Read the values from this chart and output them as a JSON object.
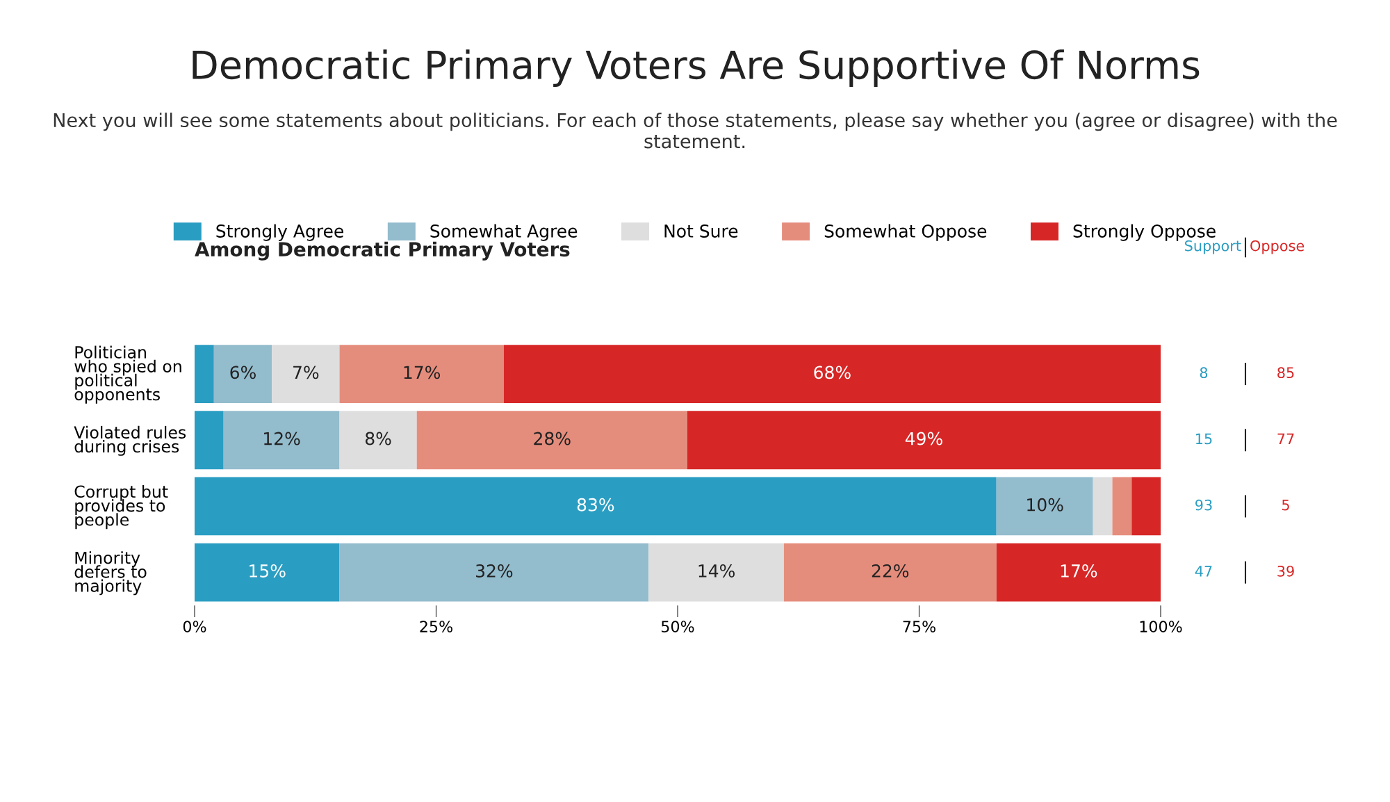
{
  "chart_data": {
    "type": "bar",
    "orientation": "horizontal",
    "stacked": true,
    "title": "Democratic Primary Voters Are Supportive Of Norms",
    "subtitle": "Next you will see some statements about politicians. For each of those statements, please say whether you (agree or disagree) with the statement.",
    "categories": [
      "Politician\nwho spied on\npolitical\nopponents",
      "Violated rules\nduring crises",
      "Corrupt but\nprovides to\npeople",
      "Minority\ndefers to\nmajority"
    ],
    "series": [
      {
        "name": "Strongly Agree",
        "color": "#2a9dc2",
        "values": [
          2,
          3,
          83,
          15
        ],
        "value_labels": [
          null,
          null,
          "83%",
          "15%"
        ]
      },
      {
        "name": "Somewhat Agree",
        "color": "#93bccd",
        "values": [
          6,
          12,
          10,
          32
        ],
        "value_labels": [
          "6%",
          "12%",
          "10%",
          "32%"
        ]
      },
      {
        "name": "Not Sure",
        "color": "#dedede",
        "values": [
          7,
          8,
          2,
          14
        ],
        "value_labels": [
          "7%",
          "8%",
          null,
          "14%"
        ]
      },
      {
        "name": "Somewhat Oppose",
        "color": "#e58d7d",
        "values": [
          17,
          28,
          2,
          22
        ],
        "value_labels": [
          "17%",
          "28%",
          null,
          "22%"
        ]
      },
      {
        "name": "Strongly Oppose",
        "color": "#d72626",
        "values": [
          68,
          49,
          3,
          17
        ],
        "value_labels": [
          "68%",
          "49%",
          null,
          "17%"
        ]
      }
    ],
    "xlim": [
      0,
      100
    ],
    "xticks": [
      {
        "value": 0,
        "label": "0%"
      },
      {
        "value": 25,
        "label": "25%"
      },
      {
        "value": 50,
        "label": "50%"
      },
      {
        "value": 75,
        "label": "75%"
      },
      {
        "value": 100,
        "label": "100%"
      }
    ],
    "grid": false,
    "legend": "top",
    "annotations": [
      "Among Democratic Primary Voters",
      "Support",
      "Oppose",
      "8",
      "85",
      "15",
      "77",
      "93",
      "5",
      "47",
      "39"
    ]
  }
}
